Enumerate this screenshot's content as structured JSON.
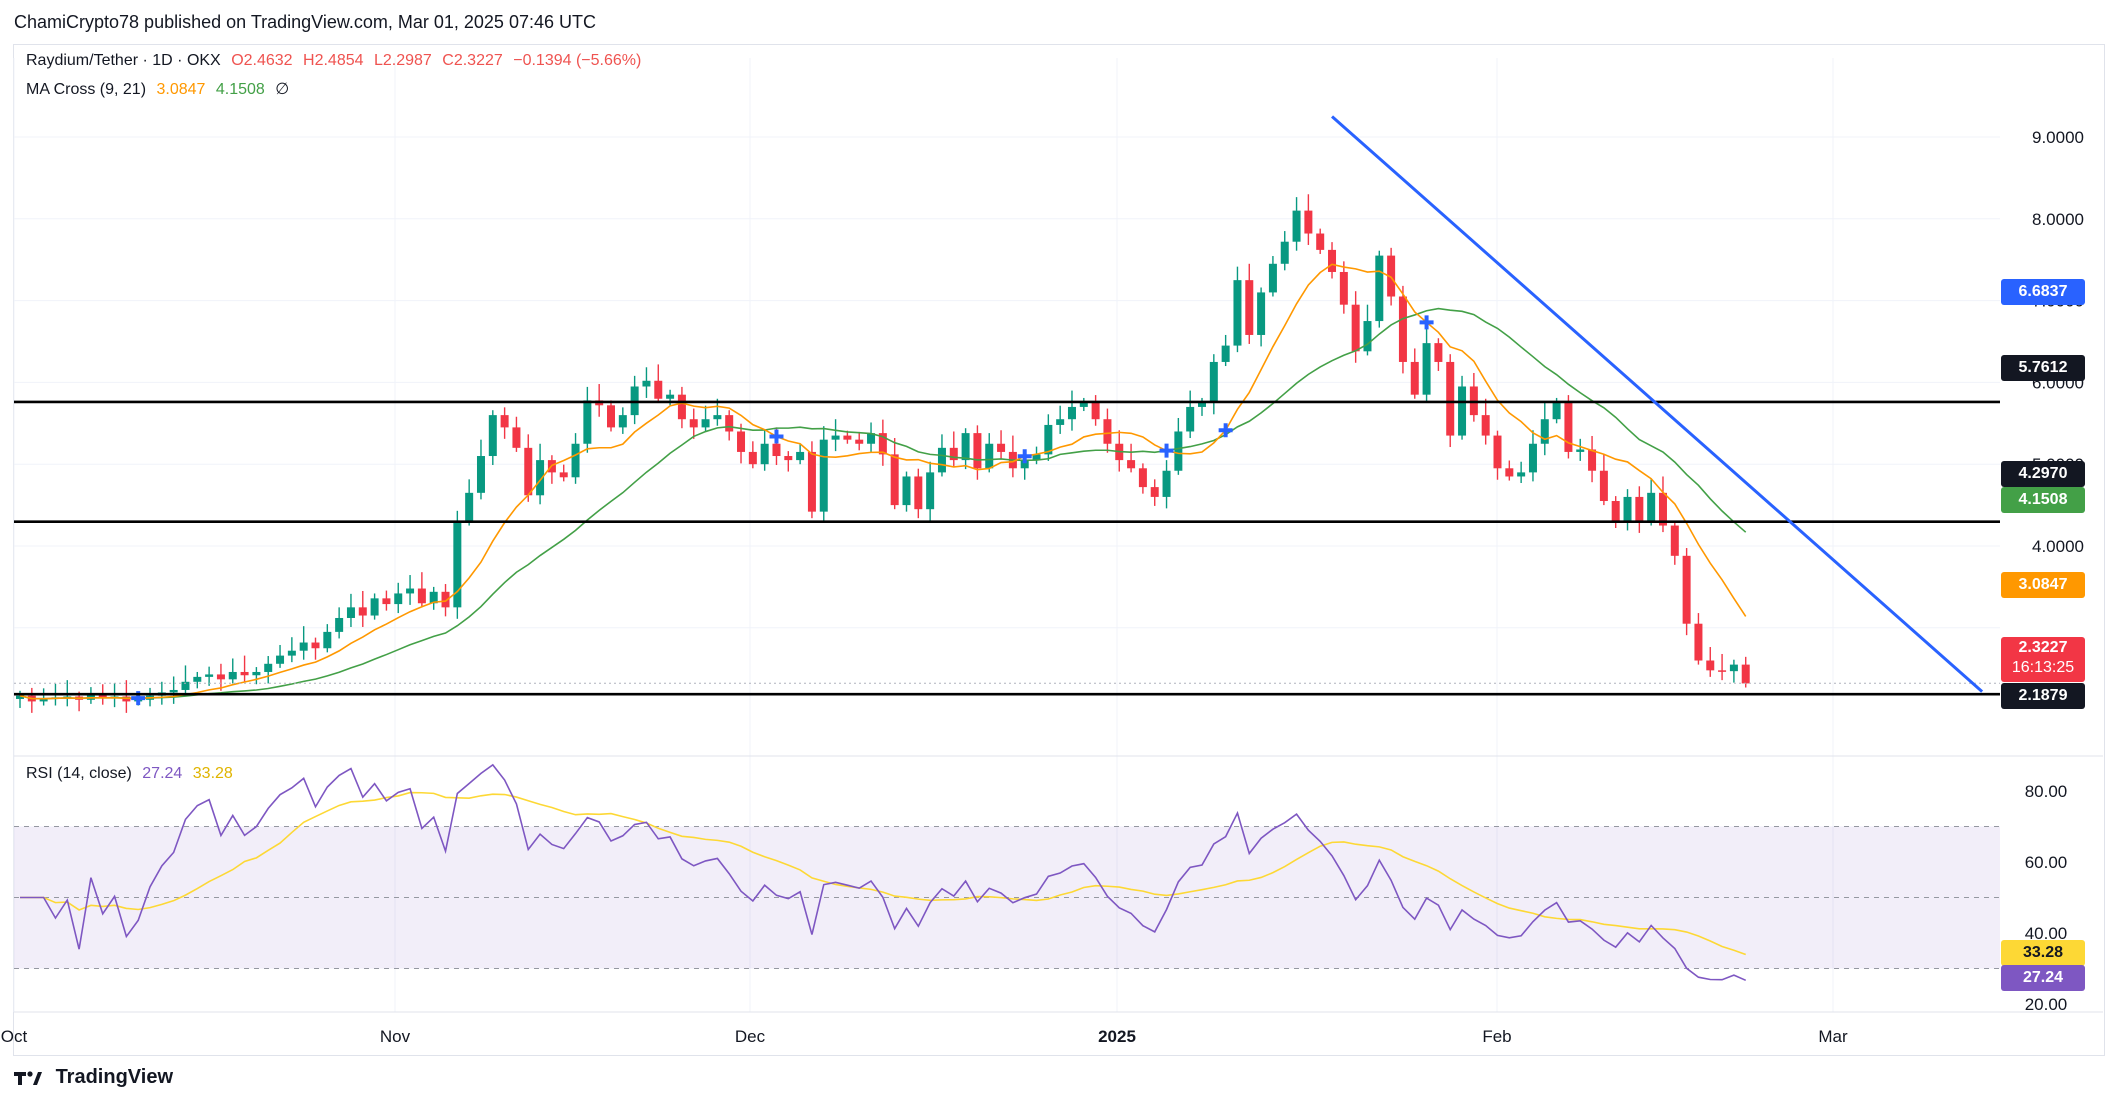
{
  "publisher": "ChamiCrypto78 published on TradingView.com, Mar 01, 2025 07:46 UTC",
  "brand": "TradingView",
  "legend": {
    "symbol": "Raydium/Tether · 1D · OKX",
    "open": "O2.4632",
    "high": "H2.4854",
    "low": "L2.2987",
    "close": "C2.3227",
    "change": "−0.1394 (−5.66%)",
    "ma_label": "MA Cross (9, 21)",
    "ma_fast": "3.0847",
    "ma_slow": "4.1508",
    "ma_extra": "∅",
    "rsi_label": "RSI (14, close)",
    "rsi_value": "27.24",
    "rsi_ma": "33.28"
  },
  "price_labels": {
    "p6683": "6.6837",
    "p5761": "5.7612",
    "p4297": "4.2970",
    "p4150": "4.1508",
    "p3084": "3.0847",
    "p2322": "2.3227",
    "countdown": "16:13:25",
    "p2187": "2.1879",
    "rsi_ma_tag": "33.28",
    "rsi_tag": "27.24"
  },
  "colors": {
    "up": "#089981",
    "down": "#f23645",
    "ma_fast": "#ff9800",
    "ma_slow": "#43a047",
    "trendline": "#2962ff",
    "rsi": "#7e57c2",
    "rsi_ma": "#fdd835"
  },
  "chart_data": {
    "type": "candlestick",
    "title": "Raydium/Tether · 1D · OKX",
    "y_ticks": [
      "9.0000",
      "8.0000",
      "7.0000",
      "6.0000",
      "5.0000",
      "4.0000"
    ],
    "x_ticks": [
      "Oct",
      "Nov",
      "Dec",
      "2025",
      "Feb",
      "Mar"
    ],
    "horizontal_levels": [
      5.7612,
      4.297,
      2.1879
    ],
    "trendline": {
      "from": {
        "date": "2025-01-19",
        "price": 9.25
      },
      "to": {
        "date": "2025-03-15",
        "price": 2.22
      }
    },
    "closes": [
      2.17,
      2.1,
      2.13,
      2.15,
      2.16,
      2.12,
      2.18,
      2.14,
      2.16,
      2.1,
      2.12,
      2.17,
      2.21,
      2.24,
      2.34,
      2.4,
      2.43,
      2.37,
      2.46,
      2.42,
      2.46,
      2.56,
      2.66,
      2.72,
      2.82,
      2.75,
      2.95,
      3.12,
      3.25,
      3.15,
      3.36,
      3.29,
      3.42,
      3.48,
      3.3,
      3.44,
      3.25,
      4.3,
      4.65,
      5.1,
      5.6,
      5.45,
      5.2,
      4.62,
      5.05,
      4.9,
      4.84,
      5.25,
      5.78,
      5.72,
      5.45,
      5.6,
      5.95,
      6.02,
      5.8,
      5.85,
      5.55,
      5.45,
      5.55,
      5.6,
      5.4,
      5.15,
      5.0,
      5.25,
      5.1,
      5.05,
      5.15,
      4.42,
      5.3,
      5.35,
      5.3,
      5.25,
      5.38,
      5.12,
      4.5,
      4.85,
      4.45,
      4.9,
      5.2,
      5.05,
      5.38,
      4.95,
      5.25,
      5.15,
      4.95,
      5.05,
      5.12,
      5.48,
      5.55,
      5.7,
      5.75,
      5.55,
      5.25,
      5.05,
      4.95,
      4.72,
      4.6,
      4.92,
      5.4,
      5.7,
      5.75,
      6.25,
      6.45,
      7.25,
      6.58,
      7.1,
      7.45,
      7.72,
      8.1,
      7.82,
      7.62,
      7.35,
      6.95,
      6.38,
      6.75,
      7.55,
      7.05,
      6.25,
      5.85,
      6.48,
      6.25,
      5.35,
      5.95,
      5.6,
      5.35,
      4.95,
      4.85,
      4.9,
      5.25,
      5.55,
      5.75,
      5.15,
      5.18,
      4.92,
      4.55,
      4.3,
      4.6,
      4.3,
      4.65,
      4.25,
      3.88,
      3.05,
      2.6,
      2.48,
      2.47,
      2.55,
      2.32
    ],
    "ma_fast": {
      "period": 9,
      "last": 3.0847
    },
    "ma_slow": {
      "period": 21,
      "last": 4.1508
    },
    "rsi": {
      "period": 14,
      "last": 27.24,
      "ma_last": 33.28,
      "y_ticks": [
        "80.00",
        "60.00",
        "40.00",
        "20.00"
      ],
      "overbought": 70,
      "oversold": 30
    }
  }
}
